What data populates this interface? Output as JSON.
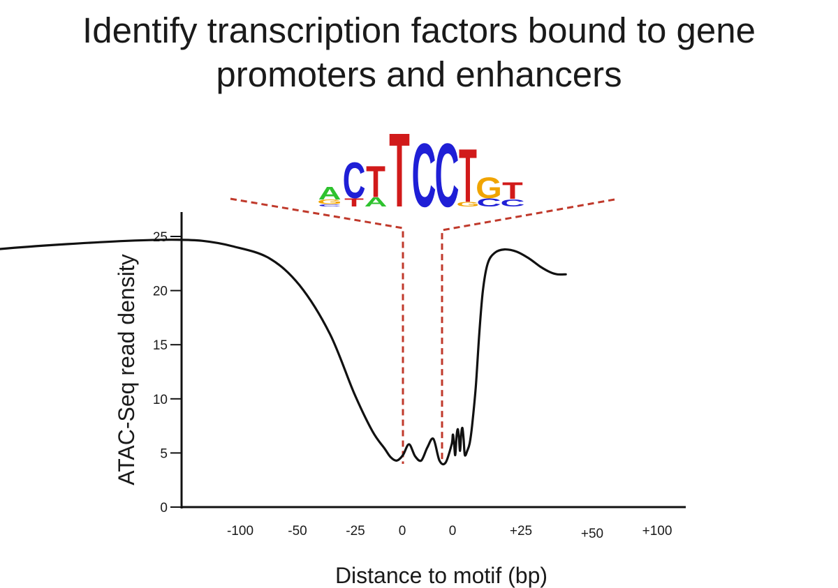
{
  "title": {
    "line1": "Identify  transcription factors bound to gene",
    "line2": "promoters and enhancers"
  },
  "colors": {
    "A": "#2ec22e",
    "C": "#1f1fd6",
    "G": "#f0a400",
    "T": "#d11a1a",
    "curve": "#111111",
    "guide": "#c0392b"
  },
  "motif_logo": {
    "positions": [
      [
        {
          "base": "A",
          "h": 0.55
        },
        {
          "base": "G",
          "h": 0.2
        },
        {
          "base": "C",
          "h": 0.1
        }
      ],
      [
        {
          "base": "C",
          "h": 1.55
        },
        {
          "base": "T",
          "h": 0.35
        }
      ],
      [
        {
          "base": "T",
          "h": 1.35
        },
        {
          "base": "A",
          "h": 0.4
        }
      ],
      [
        {
          "base": "T",
          "h": 3.2
        }
      ],
      [
        {
          "base": "C",
          "h": 2.75
        }
      ],
      [
        {
          "base": "C",
          "h": 2.75
        }
      ],
      [
        {
          "base": "T",
          "h": 2.3
        },
        {
          "base": "G",
          "h": 0.2
        }
      ],
      [
        {
          "base": "G",
          "h": 0.9
        },
        {
          "base": "C",
          "h": 0.35
        }
      ],
      [
        {
          "base": "T",
          "h": 0.72
        },
        {
          "base": "C",
          "h": 0.32
        }
      ]
    ]
  },
  "chart_data": {
    "type": "line",
    "xlabel": "Distance to motif (bp)",
    "ylabel": "ATAC-Seq read density",
    "y_ticks": [
      0,
      5,
      10,
      15,
      20,
      25
    ],
    "ylim": [
      0,
      27
    ],
    "x_tick_labels": [
      "-100",
      "-50",
      "-25",
      "0",
      "0",
      "+25",
      "+50",
      "+100"
    ],
    "series": [
      {
        "values": [
          [
            -103,
            22.5
          ],
          [
            -95,
            22.6
          ],
          [
            -85,
            22.9
          ],
          [
            -75,
            23.4
          ],
          [
            -65,
            23.9
          ],
          [
            -55,
            24.3
          ],
          [
            -45,
            24.6
          ],
          [
            -38,
            24.7
          ],
          [
            -33,
            24.6
          ],
          [
            -28,
            24.1
          ],
          [
            -22,
            23.0
          ],
          [
            -17,
            20.5
          ],
          [
            -12,
            16.0
          ],
          [
            -8,
            10.5
          ],
          [
            -5,
            7.0
          ],
          [
            -3,
            5.4
          ],
          [
            -2,
            4.6
          ],
          [
            -1,
            4.3
          ],
          [
            0,
            4.8
          ],
          [
            1,
            5.8
          ],
          [
            2,
            4.7
          ],
          [
            3,
            4.3
          ],
          [
            4,
            5.5
          ],
          [
            5,
            6.3
          ],
          [
            6,
            4.3
          ],
          [
            7,
            4.1
          ],
          [
            8,
            5.8
          ],
          [
            9,
            6.7
          ],
          [
            10,
            5.9
          ],
          [
            11,
            4.8
          ],
          [
            12,
            6.4
          ],
          [
            13,
            7.2
          ],
          [
            14,
            6.5
          ],
          [
            15,
            5.2
          ],
          [
            16,
            6.8
          ],
          [
            17,
            7.3
          ],
          [
            18,
            6.2
          ],
          [
            19,
            4.8
          ],
          [
            21,
            5.2
          ],
          [
            23,
            5.9
          ],
          [
            25,
            7.5
          ],
          [
            28,
            11.0
          ],
          [
            31,
            16.0
          ],
          [
            34,
            20.0
          ],
          [
            38,
            22.5
          ],
          [
            44,
            23.5
          ],
          [
            52,
            23.8
          ],
          [
            62,
            23.6
          ],
          [
            72,
            23.0
          ],
          [
            82,
            22.2
          ],
          [
            90,
            21.7
          ],
          [
            96,
            21.5
          ],
          [
            103,
            21.5
          ]
        ]
      }
    ]
  }
}
